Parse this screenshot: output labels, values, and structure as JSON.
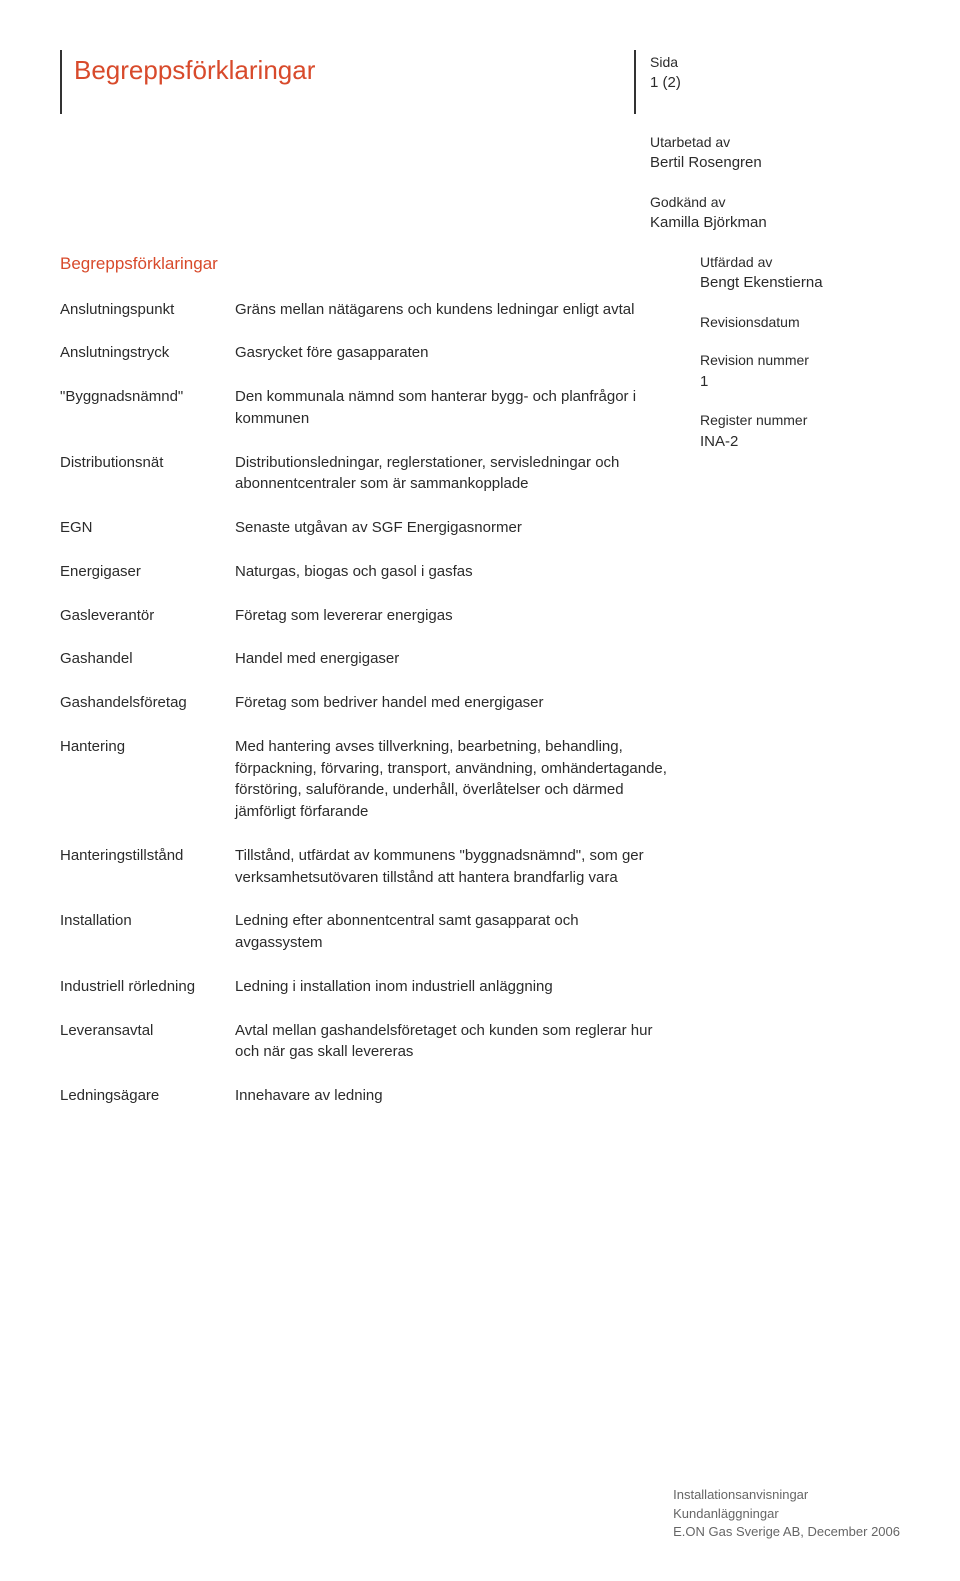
{
  "header": {
    "title": "Begreppsförklaringar",
    "page_label": "Sida",
    "page_value": "1 (2)"
  },
  "meta_top": [
    {
      "label": "Utarbetad av",
      "value": "Bertil Rosengren"
    },
    {
      "label": "Godkänd av",
      "value": "Kamilla Björkman"
    }
  ],
  "meta_side": [
    {
      "label": "Utfärdad av",
      "value": "Bengt Ekenstierna"
    },
    {
      "label": "Revisionsdatum",
      "value": ""
    },
    {
      "label": "Revision nummer",
      "value": "1"
    },
    {
      "label": "Register nummer",
      "value": "INA-2"
    }
  ],
  "section_title": "Begreppsförklaringar",
  "definitions": [
    {
      "term": "Anslutningspunkt",
      "desc": "Gräns mellan nätägarens och kundens ledningar enligt avtal"
    },
    {
      "term": "Anslutningstryck",
      "desc": "Gasrycket före gasapparaten"
    },
    {
      "term": "\"Byggnadsnämnd\"",
      "desc": "Den kommunala nämnd som hanterar bygg- och planfrågor i kommunen"
    },
    {
      "term": "Distributionsnät",
      "desc": "Distributionsledningar, reglerstationer, servisledningar och abonnentcentraler som är sammankopplade"
    },
    {
      "term": "EGN",
      "desc": "Senaste utgåvan av SGF Energigasnormer"
    },
    {
      "term": "Energigaser",
      "desc": "Naturgas, biogas och gasol i gasfas"
    },
    {
      "term": "Gasleverantör",
      "desc": "Företag som levererar energigas"
    },
    {
      "term": "Gashandel",
      "desc": "Handel med energigaser"
    },
    {
      "term": "Gashandelsföretag",
      "desc": "Företag som bedriver handel med energigaser"
    },
    {
      "term": "Hantering",
      "desc": "Med hantering avses tillverkning, bearbetning, behandling, förpackning, förvaring, transport, användning, omhändertagande, förstöring, saluförande, underhåll, överlåtelser och därmed jämförligt förfarande"
    },
    {
      "term": "Hanteringstillstånd",
      "desc": "Tillstånd, utfärdat av kommunens \"byggnadsnämnd\", som ger verksamhetsutövaren tillstånd att hantera brandfarlig vara"
    },
    {
      "term": "Installation",
      "desc": "Ledning efter abonnentcentral samt gasapparat och avgassystem"
    },
    {
      "term": "Industriell rörledning",
      "desc": "Ledning i installation inom industriell anläggning"
    },
    {
      "term": "Leveransavtal",
      "desc": "Avtal mellan gashandelsföretaget och kunden som reglerar hur och när gas skall levereras"
    },
    {
      "term": "Ledningsägare",
      "desc": "Innehavare av ledning"
    }
  ],
  "footer": {
    "line1": "Installationsanvisningar",
    "line2": "Kundanläggningar",
    "line3": "E.ON Gas Sverige AB, December 2006"
  },
  "colors": {
    "accent": "#d84a2b",
    "text": "#2b2b2b",
    "footer": "#666666",
    "rule": "#333333",
    "background": "#ffffff"
  },
  "typography": {
    "title_fontsize": 26,
    "section_fontsize": 17,
    "body_fontsize": 15,
    "meta_fontsize": 14,
    "footer_fontsize": 13
  }
}
